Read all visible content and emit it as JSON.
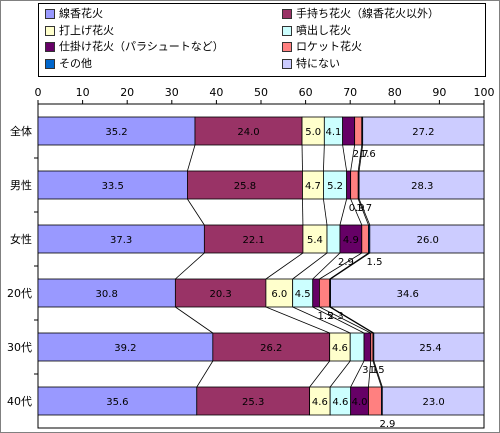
{
  "colors": {
    "s1": "#9999ff",
    "s2": "#993366",
    "s3": "#ffffcc",
    "s4": "#ccffff",
    "s5": "#660066",
    "s6": "#ff8080",
    "s7": "#0066cc",
    "s8": "#ccccff"
  },
  "legend": {
    "items": [
      {
        "key": "s1",
        "label": "線香花火"
      },
      {
        "key": "s2",
        "label": "手持ち花火（線香花火以外）"
      },
      {
        "key": "s3",
        "label": "打上げ花火"
      },
      {
        "key": "s4",
        "label": "噴出し花火"
      },
      {
        "key": "s5",
        "label": "仕掛け花火（パラシュートなど）"
      },
      {
        "key": "s6",
        "label": "ロケット花火"
      },
      {
        "key": "s7",
        "label": "その他"
      },
      {
        "key": "s8",
        "label": "特にない"
      }
    ]
  },
  "chart_data": {
    "type": "bar",
    "orientation": "horizontal",
    "stacked": true,
    "xlim": [
      0,
      100
    ],
    "x_ticks": [
      "0",
      "10",
      "20",
      "30",
      "40",
      "50",
      "60",
      "70",
      "80",
      "90",
      "100"
    ],
    "categories": [
      "全体",
      "男性",
      "女性",
      "20代",
      "30代",
      "40代"
    ],
    "series": [
      {
        "name": "線香花火",
        "key": "s1",
        "values": [
          35.2,
          33.5,
          37.3,
          30.8,
          39.2,
          35.6
        ]
      },
      {
        "name": "手持ち花火（線香花火以外）",
        "key": "s2",
        "values": [
          24.0,
          25.8,
          22.1,
          20.3,
          26.2,
          25.3
        ]
      },
      {
        "name": "打上げ花火",
        "key": "s3",
        "values": [
          5.0,
          4.7,
          5.4,
          6.0,
          4.6,
          4.6
        ]
      },
      {
        "name": "噴出し花火",
        "key": "s4",
        "values": [
          4.1,
          5.2,
          2.9,
          4.5,
          3.1,
          4.6
        ]
      },
      {
        "name": "仕掛け花火（パラシュートなど）",
        "key": "s5",
        "values": [
          2.7,
          0.9,
          4.9,
          1.5,
          1.5,
          4.0
        ]
      },
      {
        "name": "ロケット花火",
        "key": "s6",
        "values": [
          1.6,
          1.7,
          1.5,
          2.3,
          0.5,
          2.9
        ]
      },
      {
        "name": "その他",
        "key": "s7",
        "values": [
          0.2,
          0.2,
          0.3,
          0.2,
          0.2,
          0.2
        ]
      },
      {
        "name": "特にない",
        "key": "s8",
        "values": [
          27.2,
          28.3,
          26.0,
          34.6,
          25.4,
          23.0
        ]
      }
    ],
    "data_labels": [
      [
        "35.2",
        "24.0",
        "5.0",
        "4.1",
        "2.7",
        "1.6",
        "",
        "27.2"
      ],
      [
        "33.5",
        "25.8",
        "4.7",
        "5.2",
        "0.9",
        "1.7",
        "",
        "28.3"
      ],
      [
        "37.3",
        "22.1",
        "5.4",
        "2.9",
        "4.9",
        "1.5",
        "",
        "26.0"
      ],
      [
        "30.8",
        "20.3",
        "6.0",
        "4.5",
        "1.5",
        "2.3",
        "",
        "34.6"
      ],
      [
        "39.2",
        "26.2",
        "4.6",
        "3.1",
        "1.5",
        "",
        "",
        "25.4"
      ],
      [
        "35.6",
        "25.3",
        "4.6",
        "4.6",
        "4.0",
        "2.9",
        "",
        "23.0"
      ]
    ],
    "grid": true,
    "legend_position": "top"
  }
}
